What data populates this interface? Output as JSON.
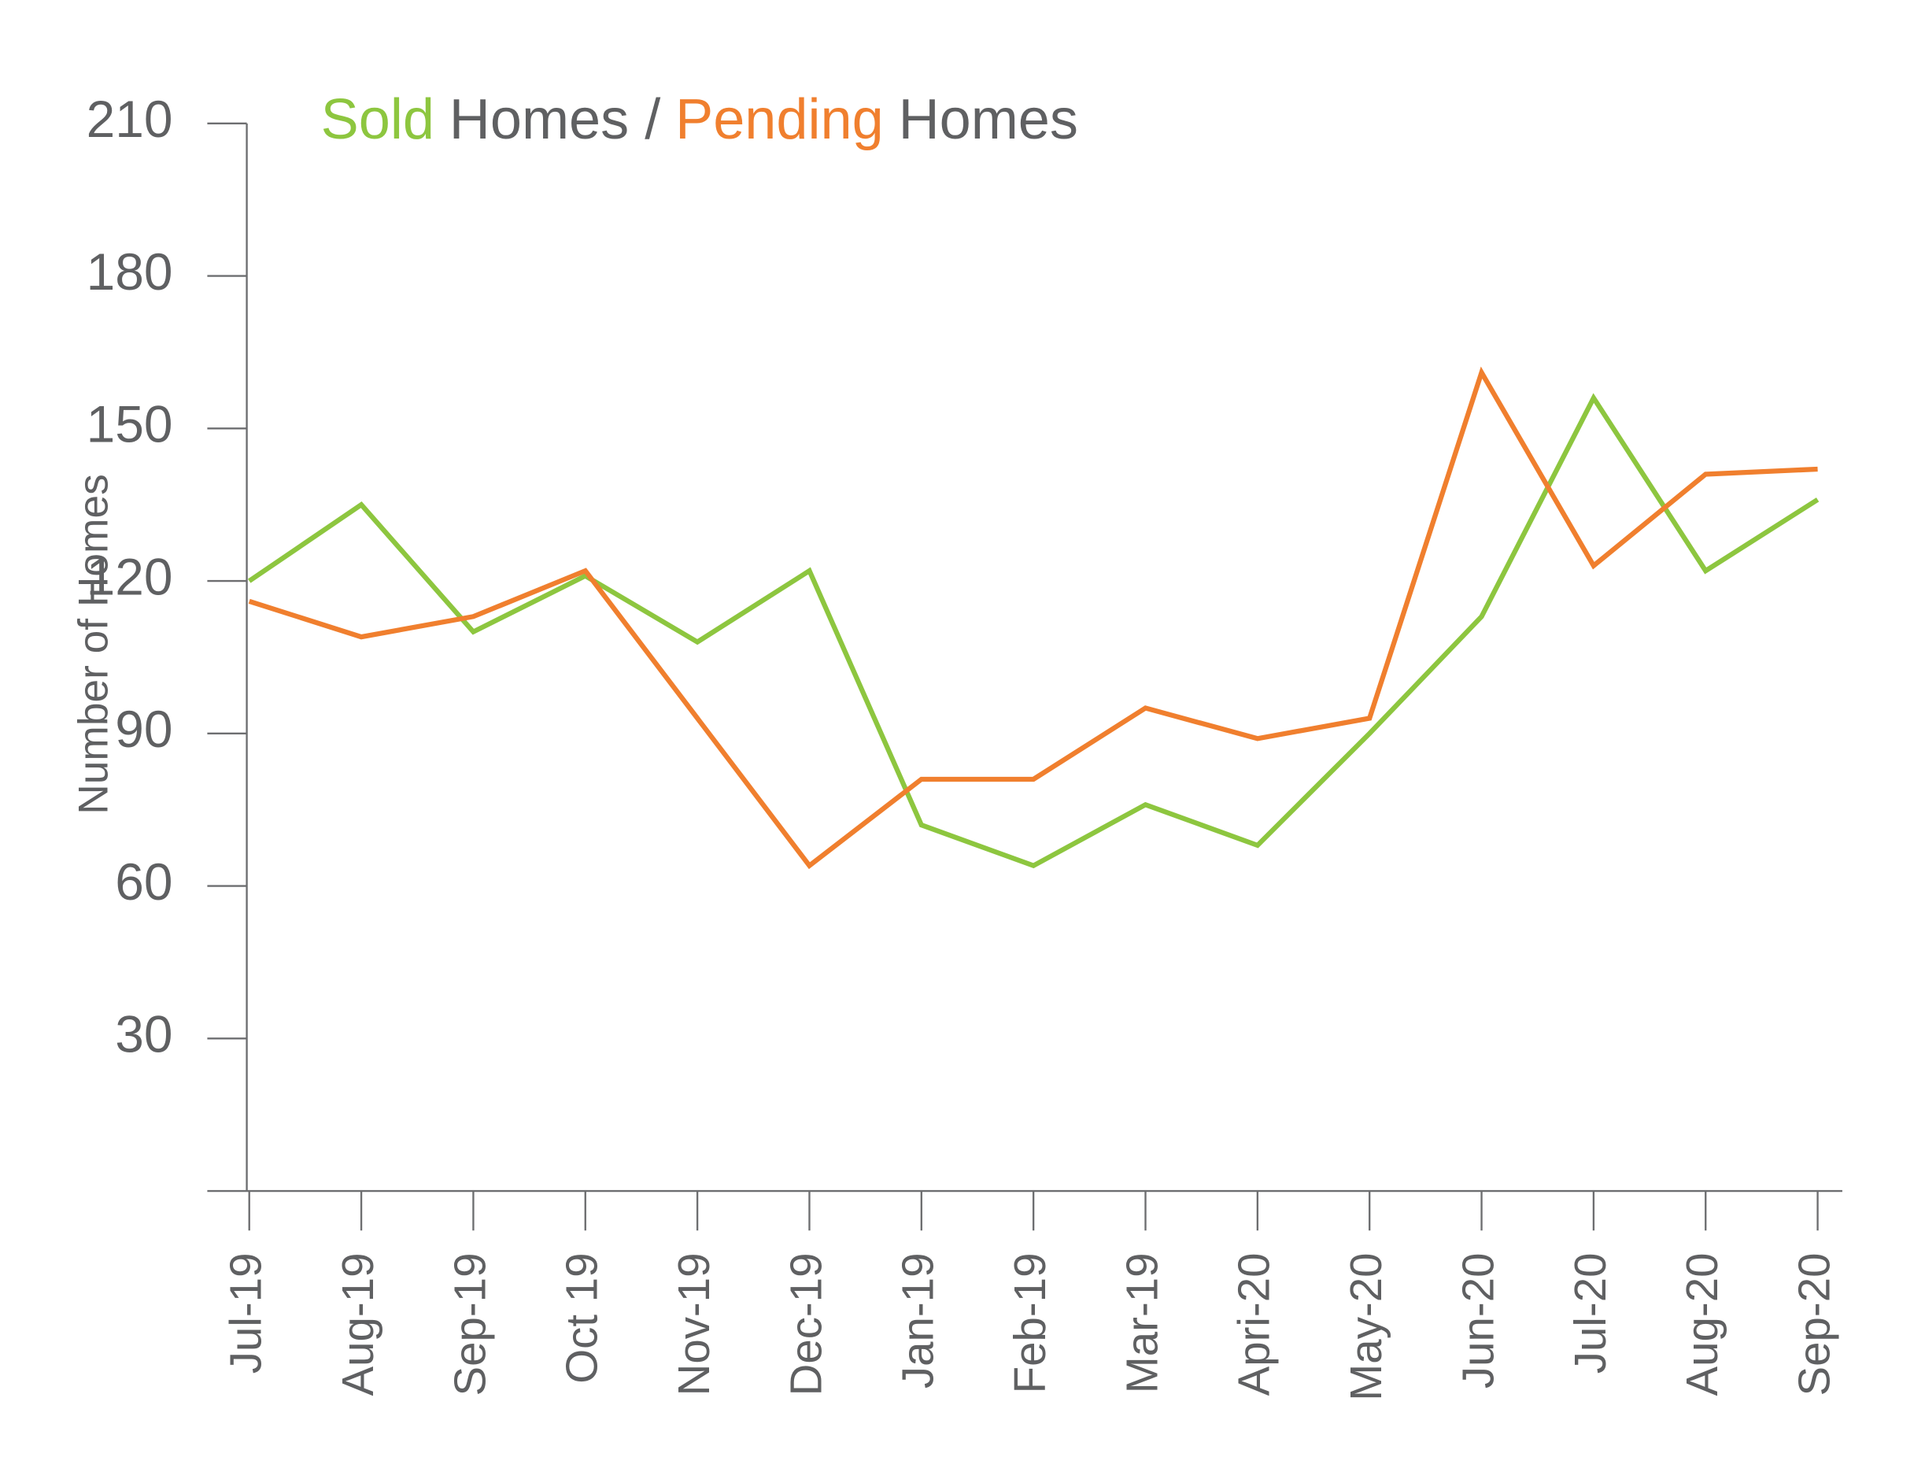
{
  "chart_data": {
    "type": "line",
    "title_parts": [
      {
        "text": "Sold",
        "color": "#8dc63f"
      },
      {
        "text": "Homes /",
        "color": "#5f6062"
      },
      {
        "text": "Pending",
        "color": "#f07f2e"
      },
      {
        "text": "Homes",
        "color": "#5f6062"
      }
    ],
    "y_label": "Number of Homes",
    "categories": [
      "Jul-19",
      "Aug-19",
      "Sep-19",
      "Oct 19",
      "Nov-19",
      "Dec-19",
      "Jan-19",
      "Feb-19",
      "Mar-19",
      "Apri-20",
      "May-20",
      "Jun-20",
      "Jul-20",
      "Aug-20",
      "Sep-20"
    ],
    "series": [
      {
        "color": "#8dc63f",
        "values": [
          120,
          135,
          110,
          121,
          108,
          122,
          72,
          64,
          76,
          68,
          90,
          113,
          156,
          122,
          136
        ]
      },
      {
        "color": "#f07f2e",
        "values": [
          116,
          109,
          113,
          122,
          93,
          64,
          81,
          81,
          95,
          89,
          93,
          161,
          123,
          141,
          142
        ]
      }
    ],
    "ylim": [
      0,
      210
    ],
    "yticks": [
      30,
      60,
      90,
      120,
      150,
      180,
      210
    ]
  }
}
